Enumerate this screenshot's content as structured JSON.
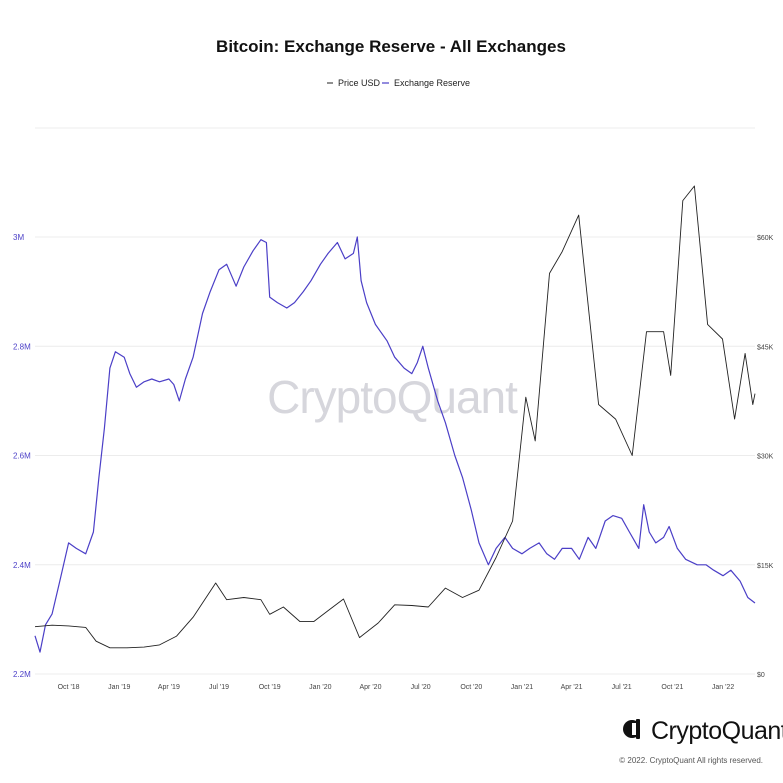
{
  "title": "Bitcoin: Exchange Reserve - All Exchanges",
  "legend": [
    {
      "label": "Price USD",
      "color": "#222222"
    },
    {
      "label": "Exchange Reserve",
      "color": "#4b3fc7"
    }
  ],
  "watermark": "CryptoQuant",
  "brand": {
    "name": "CryptoQuant",
    "copyright": "© 2022. CryptoQuant All rights reserved."
  },
  "chart_data": {
    "type": "line",
    "title": "Bitcoin: Exchange Reserve - All Exchanges",
    "x_range": [
      "2018-08-01",
      "2022-02-28"
    ],
    "x_ticks": [
      {
        "date": "2018-10-01",
        "label": "Oct '18"
      },
      {
        "date": "2019-01-01",
        "label": "Jan '19"
      },
      {
        "date": "2019-04-01",
        "label": "Apr '19"
      },
      {
        "date": "2019-07-01",
        "label": "Jul '19"
      },
      {
        "date": "2019-10-01",
        "label": "Oct '19"
      },
      {
        "date": "2020-01-01",
        "label": "Jan '20"
      },
      {
        "date": "2020-04-01",
        "label": "Apr '20"
      },
      {
        "date": "2020-07-01",
        "label": "Jul '20"
      },
      {
        "date": "2020-10-01",
        "label": "Oct '20"
      },
      {
        "date": "2021-01-01",
        "label": "Jan '21"
      },
      {
        "date": "2021-04-01",
        "label": "Apr '21"
      },
      {
        "date": "2021-07-01",
        "label": "Jul '21"
      },
      {
        "date": "2021-10-01",
        "label": "Oct '21"
      },
      {
        "date": "2022-01-01",
        "label": "Jan '22"
      }
    ],
    "y_left": {
      "min": 2200000,
      "max": 3000000,
      "ticks": [
        {
          "v": 2200000,
          "label": "2.2M"
        },
        {
          "v": 2400000,
          "label": "2.4M"
        },
        {
          "v": 2600000,
          "label": "2.6M"
        },
        {
          "v": 2800000,
          "label": "2.8M"
        },
        {
          "v": 3000000,
          "label": "3M"
        }
      ]
    },
    "y_right": {
      "min": 0,
      "max": 60000,
      "ticks": [
        {
          "v": 0,
          "label": "$0"
        },
        {
          "v": 15000,
          "label": "$15K"
        },
        {
          "v": 30000,
          "label": "$30K"
        },
        {
          "v": 45000,
          "label": "$45K"
        },
        {
          "v": 60000,
          "label": "$60K"
        }
      ]
    },
    "grid": true,
    "legend_position": "top-center",
    "series": [
      {
        "name": "Exchange Reserve",
        "axis": "left",
        "color": "#4b3fc7",
        "points": [
          [
            "2018-08-01",
            2270000
          ],
          [
            "2018-08-10",
            2240000
          ],
          [
            "2018-08-20",
            2290000
          ],
          [
            "2018-09-01",
            2310000
          ],
          [
            "2018-09-15",
            2370000
          ],
          [
            "2018-10-01",
            2440000
          ],
          [
            "2018-10-15",
            2430000
          ],
          [
            "2018-11-01",
            2420000
          ],
          [
            "2018-11-15",
            2460000
          ],
          [
            "2018-11-25",
            2560000
          ],
          [
            "2018-12-05",
            2650000
          ],
          [
            "2018-12-15",
            2760000
          ],
          [
            "2018-12-25",
            2790000
          ],
          [
            "2019-01-10",
            2780000
          ],
          [
            "2019-01-20",
            2750000
          ],
          [
            "2019-02-01",
            2725000
          ],
          [
            "2019-02-15",
            2735000
          ],
          [
            "2019-03-01",
            2740000
          ],
          [
            "2019-03-15",
            2735000
          ],
          [
            "2019-04-01",
            2740000
          ],
          [
            "2019-04-10",
            2730000
          ],
          [
            "2019-04-20",
            2700000
          ],
          [
            "2019-05-01",
            2740000
          ],
          [
            "2019-05-15",
            2780000
          ],
          [
            "2019-06-01",
            2860000
          ],
          [
            "2019-06-15",
            2900000
          ],
          [
            "2019-07-01",
            2940000
          ],
          [
            "2019-07-15",
            2950000
          ],
          [
            "2019-08-01",
            2910000
          ],
          [
            "2019-08-15",
            2945000
          ],
          [
            "2019-09-01",
            2975000
          ],
          [
            "2019-09-15",
            2995000
          ],
          [
            "2019-09-25",
            2990000
          ],
          [
            "2019-10-01",
            2890000
          ],
          [
            "2019-10-15",
            2880000
          ],
          [
            "2019-11-01",
            2870000
          ],
          [
            "2019-11-15",
            2880000
          ],
          [
            "2019-12-01",
            2900000
          ],
          [
            "2019-12-15",
            2920000
          ],
          [
            "2020-01-01",
            2950000
          ],
          [
            "2020-01-15",
            2970000
          ],
          [
            "2020-02-01",
            2990000
          ],
          [
            "2020-02-15",
            2960000
          ],
          [
            "2020-03-01",
            2970000
          ],
          [
            "2020-03-08",
            3000000
          ],
          [
            "2020-03-15",
            2920000
          ],
          [
            "2020-03-25",
            2880000
          ],
          [
            "2020-04-10",
            2840000
          ],
          [
            "2020-05-01",
            2810000
          ],
          [
            "2020-05-15",
            2780000
          ],
          [
            "2020-06-01",
            2760000
          ],
          [
            "2020-06-15",
            2750000
          ],
          [
            "2020-06-25",
            2770000
          ],
          [
            "2020-07-05",
            2800000
          ],
          [
            "2020-07-15",
            2760000
          ],
          [
            "2020-08-01",
            2700000
          ],
          [
            "2020-08-15",
            2660000
          ],
          [
            "2020-09-01",
            2600000
          ],
          [
            "2020-09-15",
            2560000
          ],
          [
            "2020-10-01",
            2500000
          ],
          [
            "2020-10-15",
            2440000
          ],
          [
            "2020-11-01",
            2400000
          ],
          [
            "2020-11-15",
            2430000
          ],
          [
            "2020-12-01",
            2450000
          ],
          [
            "2020-12-15",
            2430000
          ],
          [
            "2021-01-01",
            2420000
          ],
          [
            "2021-01-15",
            2430000
          ],
          [
            "2021-02-01",
            2440000
          ],
          [
            "2021-02-15",
            2420000
          ],
          [
            "2021-03-01",
            2410000
          ],
          [
            "2021-03-15",
            2430000
          ],
          [
            "2021-04-01",
            2430000
          ],
          [
            "2021-04-15",
            2410000
          ],
          [
            "2021-05-01",
            2450000
          ],
          [
            "2021-05-15",
            2430000
          ],
          [
            "2021-06-01",
            2480000
          ],
          [
            "2021-06-15",
            2490000
          ],
          [
            "2021-07-01",
            2485000
          ],
          [
            "2021-07-15",
            2460000
          ],
          [
            "2021-08-01",
            2430000
          ],
          [
            "2021-08-10",
            2510000
          ],
          [
            "2021-08-20",
            2460000
          ],
          [
            "2021-09-01",
            2440000
          ],
          [
            "2021-09-15",
            2450000
          ],
          [
            "2021-09-25",
            2470000
          ],
          [
            "2021-10-10",
            2430000
          ],
          [
            "2021-10-25",
            2410000
          ],
          [
            "2021-11-15",
            2400000
          ],
          [
            "2021-12-01",
            2400000
          ],
          [
            "2021-12-15",
            2390000
          ],
          [
            "2022-01-01",
            2380000
          ],
          [
            "2022-01-15",
            2390000
          ],
          [
            "2022-02-01",
            2370000
          ],
          [
            "2022-02-15",
            2340000
          ],
          [
            "2022-02-28",
            2330000
          ]
        ]
      },
      {
        "name": "Price USD",
        "axis": "right",
        "color": "#222222",
        "points": [
          [
            "2018-08-01",
            6500
          ],
          [
            "2018-09-01",
            6700
          ],
          [
            "2018-10-01",
            6600
          ],
          [
            "2018-11-01",
            6400
          ],
          [
            "2018-11-20",
            4500
          ],
          [
            "2018-12-15",
            3600
          ],
          [
            "2019-01-15",
            3600
          ],
          [
            "2019-02-15",
            3700
          ],
          [
            "2019-03-15",
            4000
          ],
          [
            "2019-04-15",
            5200
          ],
          [
            "2019-05-15",
            7800
          ],
          [
            "2019-06-25",
            12500
          ],
          [
            "2019-07-15",
            10200
          ],
          [
            "2019-08-15",
            10500
          ],
          [
            "2019-09-15",
            10200
          ],
          [
            "2019-10-01",
            8200
          ],
          [
            "2019-10-26",
            9200
          ],
          [
            "2019-11-25",
            7200
          ],
          [
            "2019-12-20",
            7200
          ],
          [
            "2020-01-15",
            8700
          ],
          [
            "2020-02-12",
            10300
          ],
          [
            "2020-03-12",
            5000
          ],
          [
            "2020-04-15",
            7000
          ],
          [
            "2020-05-15",
            9500
          ],
          [
            "2020-06-15",
            9400
          ],
          [
            "2020-07-15",
            9200
          ],
          [
            "2020-08-15",
            11800
          ],
          [
            "2020-09-15",
            10500
          ],
          [
            "2020-10-15",
            11500
          ],
          [
            "2020-11-15",
            16000
          ],
          [
            "2020-12-15",
            21000
          ],
          [
            "2021-01-08",
            38000
          ],
          [
            "2021-01-25",
            32000
          ],
          [
            "2021-02-20",
            55000
          ],
          [
            "2021-03-15",
            58000
          ],
          [
            "2021-04-14",
            63000
          ],
          [
            "2021-05-20",
            37000
          ],
          [
            "2021-06-20",
            35000
          ],
          [
            "2021-07-20",
            30000
          ],
          [
            "2021-08-15",
            47000
          ],
          [
            "2021-09-15",
            47000
          ],
          [
            "2021-09-28",
            41000
          ],
          [
            "2021-10-20",
            65000
          ],
          [
            "2021-11-10",
            67000
          ],
          [
            "2021-12-04",
            48000
          ],
          [
            "2021-12-31",
            46000
          ],
          [
            "2022-01-22",
            35000
          ],
          [
            "2022-02-10",
            44000
          ],
          [
            "2022-02-24",
            37000
          ],
          [
            "2022-02-28",
            38500
          ]
        ]
      }
    ]
  }
}
